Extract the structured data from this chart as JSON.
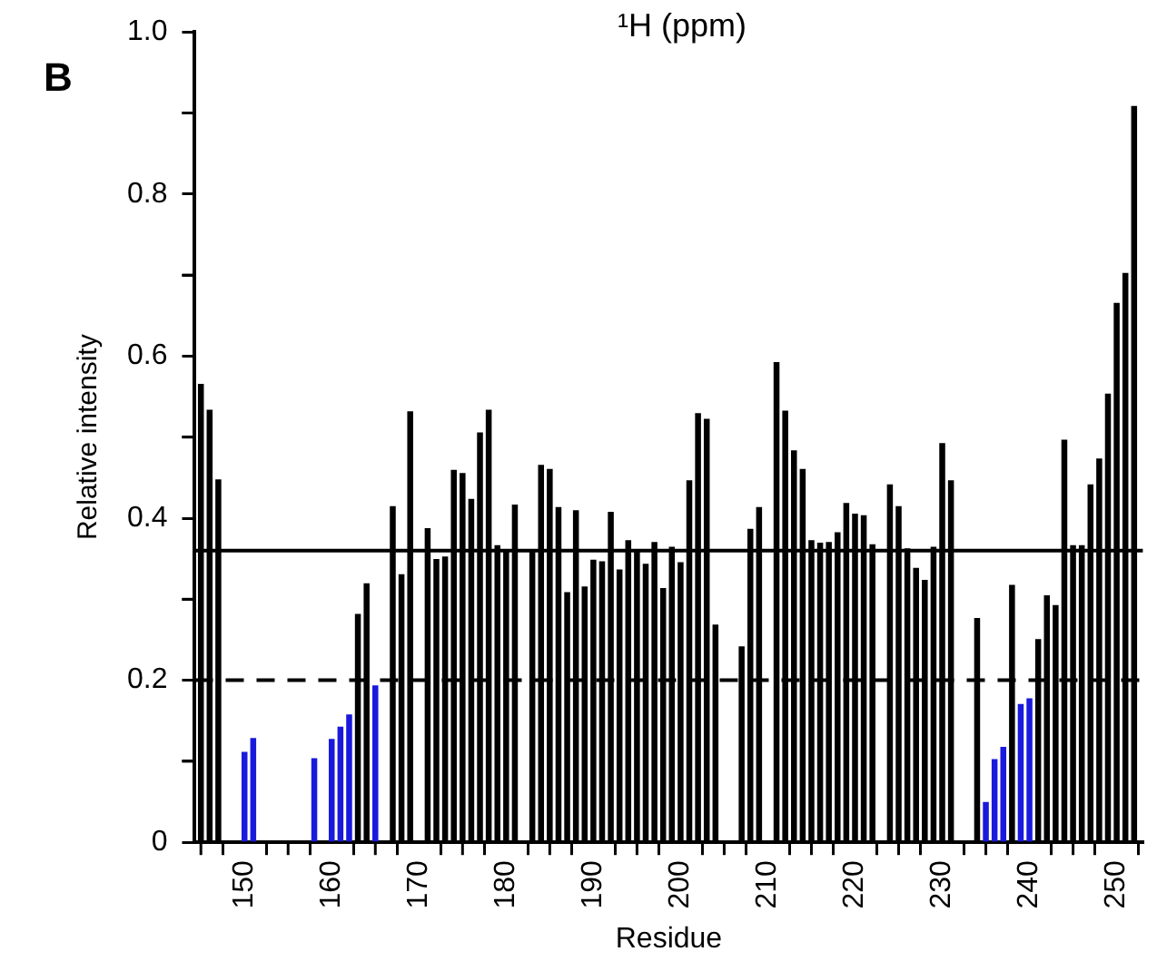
{
  "chart_data": {
    "type": "bar",
    "xlabel": "Residue",
    "ylabel": "Relative intensity",
    "annotations": [
      "B",
      "¹H (ppm)"
    ],
    "x": [
      145,
      146,
      147,
      150,
      151,
      158,
      160,
      161,
      162,
      163,
      164,
      165,
      167,
      168,
      169,
      171,
      172,
      173,
      174,
      175,
      176,
      177,
      178,
      179,
      180,
      181,
      183,
      184,
      185,
      186,
      187,
      188,
      189,
      190,
      191,
      192,
      193,
      194,
      195,
      196,
      197,
      198,
      199,
      200,
      201,
      202,
      203,
      204,
      207,
      208,
      209,
      211,
      212,
      213,
      214,
      215,
      216,
      217,
      218,
      219,
      220,
      221,
      222,
      224,
      225,
      226,
      227,
      228,
      229,
      230,
      231,
      234,
      235,
      236,
      237,
      238,
      239,
      240,
      241,
      242,
      243,
      244,
      245,
      246,
      247,
      248,
      249,
      250,
      251,
      252
    ],
    "values": [
      0.565,
      0.533,
      0.447,
      0.111,
      0.128,
      0.103,
      0.127,
      0.142,
      0.157,
      0.281,
      0.319,
      0.193,
      0.414,
      0.33,
      0.531,
      0.387,
      0.349,
      0.352,
      0.459,
      0.455,
      0.423,
      0.505,
      0.533,
      0.366,
      0.358,
      0.416,
      0.358,
      0.465,
      0.46,
      0.413,
      0.308,
      0.409,
      0.315,
      0.348,
      0.346,
      0.407,
      0.336,
      0.372,
      0.358,
      0.343,
      0.37,
      0.313,
      0.364,
      0.345,
      0.446,
      0.529,
      0.522,
      0.268,
      0.241,
      0.386,
      0.413,
      0.592,
      0.532,
      0.483,
      0.46,
      0.372,
      0.369,
      0.37,
      0.382,
      0.418,
      0.405,
      0.403,
      0.367,
      0.441,
      0.414,
      0.362,
      0.338,
      0.323,
      0.364,
      0.492,
      0.446,
      0.276,
      0.049,
      0.102,
      0.117,
      0.317,
      0.17,
      0.177,
      0.25,
      0.304,
      0.292,
      0.496,
      0.366,
      0.366,
      0.441,
      0.473,
      0.553,
      0.665,
      0.702,
      0.908
    ],
    "colors": [
      "#000000",
      "#000000",
      "#000000",
      "#1a1adc",
      "#1a1adc",
      "#1a1adc",
      "#1a1adc",
      "#1a1adc",
      "#1a1adc",
      "#000000",
      "#000000",
      "#1a1adc",
      "#000000",
      "#000000",
      "#000000",
      "#000000",
      "#000000",
      "#000000",
      "#000000",
      "#000000",
      "#000000",
      "#000000",
      "#000000",
      "#000000",
      "#000000",
      "#000000",
      "#000000",
      "#000000",
      "#000000",
      "#000000",
      "#000000",
      "#000000",
      "#000000",
      "#000000",
      "#000000",
      "#000000",
      "#000000",
      "#000000",
      "#000000",
      "#000000",
      "#000000",
      "#000000",
      "#000000",
      "#000000",
      "#000000",
      "#000000",
      "#000000",
      "#000000",
      "#000000",
      "#000000",
      "#000000",
      "#000000",
      "#000000",
      "#000000",
      "#000000",
      "#000000",
      "#000000",
      "#000000",
      "#000000",
      "#000000",
      "#000000",
      "#000000",
      "#000000",
      "#000000",
      "#000000",
      "#000000",
      "#000000",
      "#000000",
      "#000000",
      "#000000",
      "#000000",
      "#000000",
      "#1a1adc",
      "#1a1adc",
      "#1a1adc",
      "#000000",
      "#1a1adc",
      "#1a1adc",
      "#000000",
      "#000000",
      "#000000",
      "#000000",
      "#000000",
      "#000000",
      "#000000",
      "#000000",
      "#000000",
      "#000000",
      "#000000",
      "#000000"
    ],
    "xlim": [
      144.3,
      253
    ],
    "xticks": [
      {
        "value": 145,
        "label": null
      },
      150,
      {
        "value": 155,
        "label": null
      },
      160,
      {
        "value": 165,
        "label": null
      },
      170,
      {
        "value": 175,
        "label": null
      },
      180,
      {
        "value": 185,
        "label": null
      },
      190,
      {
        "value": 195,
        "label": null
      },
      200,
      {
        "value": 205,
        "label": null
      },
      210,
      {
        "value": 215,
        "label": null
      },
      220,
      {
        "value": 225,
        "label": null
      },
      230,
      {
        "value": 235,
        "label": null
      },
      240,
      {
        "value": 245,
        "label": null
      },
      250
    ],
    "ylim": [
      0,
      1
    ],
    "yticks": [
      0,
      {
        "value": 0.1,
        "label": null
      },
      0.2,
      {
        "value": 0.3,
        "label": null
      },
      0.4,
      {
        "value": 0.5,
        "label": null
      },
      0.6,
      {
        "value": 0.7,
        "label": null
      },
      0.8,
      {
        "value": 0.9,
        "label": null
      },
      {
        "value": 1,
        "label": "1.0"
      }
    ],
    "ref_lines": [
      {
        "axis": "y",
        "value": 0.36,
        "color": "#000000",
        "line_style": "solid"
      },
      {
        "axis": "y",
        "value": 0.2,
        "color": "#000000",
        "line_style": "dashed"
      }
    ]
  }
}
